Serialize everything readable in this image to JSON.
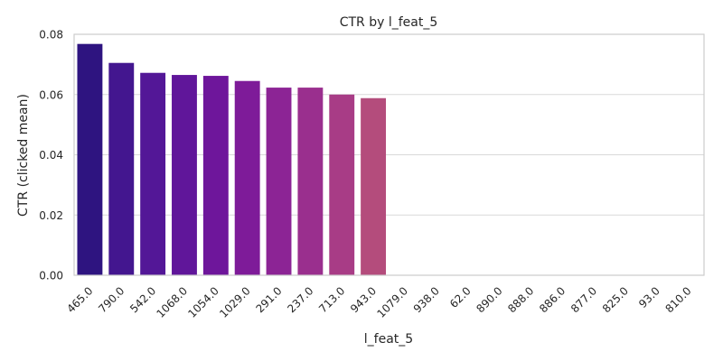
{
  "chart_data": {
    "type": "bar",
    "title": "CTR by l_feat_5",
    "xlabel": "l_feat_5",
    "ylabel": "CTR (clicked mean)",
    "ylim": [
      0,
      0.08
    ],
    "yticks": [
      "0.00",
      "0.02",
      "0.04",
      "0.06",
      "0.08"
    ],
    "grid": "y",
    "categories": [
      "465.0",
      "790.0",
      "542.0",
      "1068.0",
      "1054.0",
      "1029.0",
      "291.0",
      "237.0",
      "713.0",
      "943.0",
      "1079.0",
      "938.0",
      "62.0",
      "890.0",
      "888.0",
      "886.0",
      "877.0",
      "825.0",
      "93.0",
      "810.0"
    ],
    "values": [
      0.0768,
      0.0705,
      0.0672,
      0.0665,
      0.0662,
      0.0645,
      0.0623,
      0.0623,
      0.06,
      0.0588,
      0,
      0,
      0,
      0,
      0,
      0,
      0,
      0,
      0,
      0
    ],
    "colors": [
      "#2e1480",
      "#43168f",
      "#531797",
      "#60169a",
      "#6e169b",
      "#7e1b99",
      "#8c2495",
      "#9a2f8e",
      "#a83c86",
      "#b44c7c",
      "#bb587a",
      "#c0637a",
      "#c66d77",
      "#cb7674",
      "#d07f70",
      "#d6886b",
      "#dc9265",
      "#e29b5e",
      "#e8a557",
      "#edaf51"
    ]
  }
}
